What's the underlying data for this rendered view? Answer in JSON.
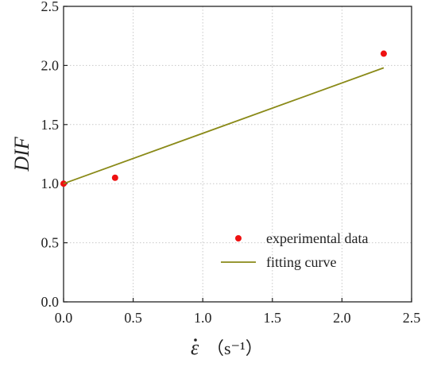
{
  "chart_data": {
    "type": "scatter",
    "ylabel": "DIF",
    "xlabel": {
      "symbol": "ε",
      "unit": "（s⁻¹）"
    },
    "xlim": [
      0,
      2.5
    ],
    "ylim": [
      0,
      2.5
    ],
    "xticks": [
      "0.0",
      "0.5",
      "1.0",
      "1.5",
      "2.0",
      "2.5"
    ],
    "yticks": [
      "0.0",
      "0.5",
      "1.0",
      "1.5",
      "2.0",
      "2.5"
    ],
    "grid": true,
    "legend_position": "bottom-right",
    "series": [
      {
        "name": "experimental data",
        "kind": "scatter",
        "color": "#ee1111",
        "x": [
          0.0,
          0.37,
          2.3
        ],
        "y": [
          1.0,
          1.05,
          2.1
        ]
      },
      {
        "name": "fitting curve",
        "kind": "line",
        "color": "#8a8a18",
        "x": [
          0.0,
          2.3
        ],
        "y": [
          1.0,
          1.98
        ]
      }
    ]
  }
}
